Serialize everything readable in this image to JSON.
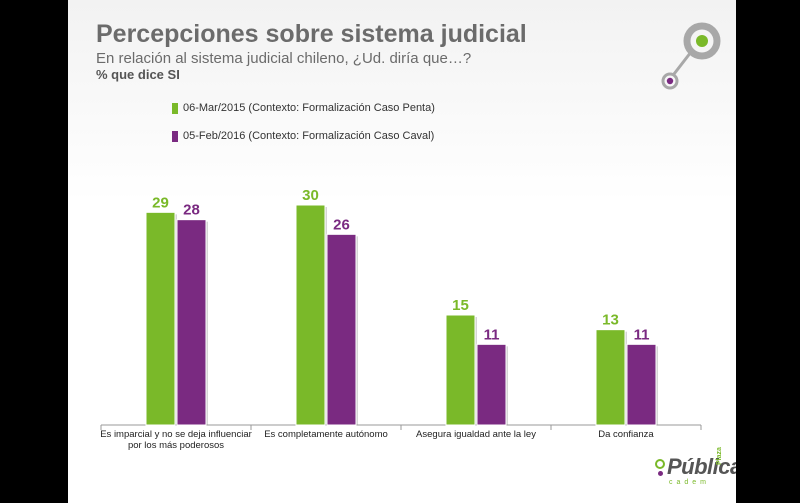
{
  "header": {
    "title": "Percepciones sobre sistema judicial",
    "subtitle": "En relación al sistema judicial chileno, ¿Ud. diría que…?",
    "measure": "%  que dice SI"
  },
  "colors": {
    "series_1": "#7ab929",
    "series_2": "#7a2a81",
    "logo_ring": "#a8a8a8",
    "logo_accent_green": "#7ab929",
    "logo_accent_purple": "#7a2a81"
  },
  "logo": {
    "icon": "concentric-circles-logo-icon"
  },
  "brand": {
    "name": "Pública",
    "plaza": "Plaza",
    "cadem": "cadem"
  },
  "chart_data": {
    "type": "bar",
    "categories": [
      [
        "Es imparcial y no se deja influenciar",
        "por los más poderosos"
      ],
      [
        "Es completamente autónomo"
      ],
      [
        "Asegura igualdad ante la ley"
      ],
      [
        "Da confianza"
      ]
    ],
    "series": [
      {
        "name": "06-Mar/2015 (Contexto: Formalización Caso Penta)",
        "values": [
          29,
          30,
          15,
          13
        ]
      },
      {
        "name": "05-Feb/2016 (Contexto: Formalización Caso Caval)",
        "values": [
          28,
          26,
          11,
          11
        ]
      }
    ],
    "ylim": [
      0,
      31
    ],
    "data_labels": true,
    "legend": "top-left",
    "grid": false
  }
}
